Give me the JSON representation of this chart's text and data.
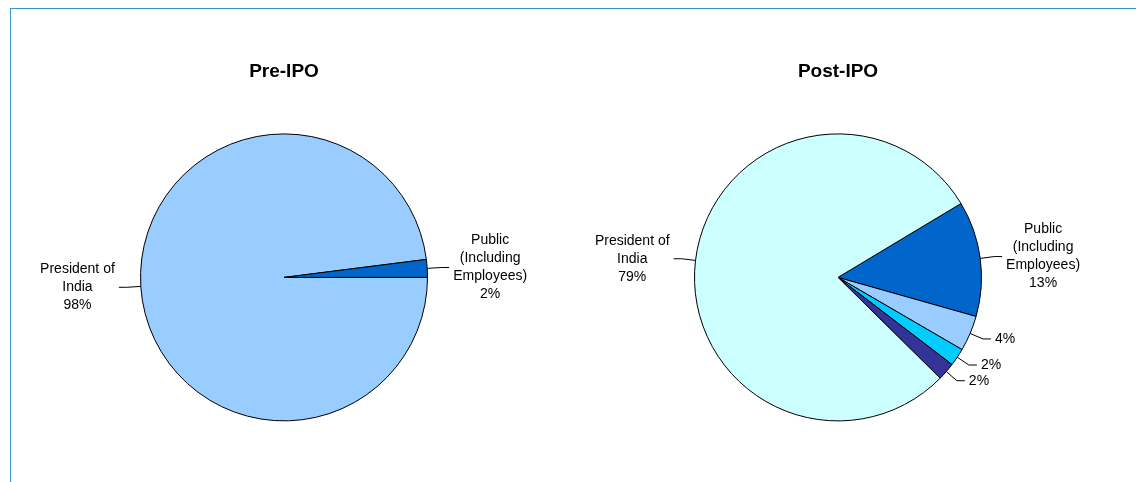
{
  "chart_data": [
    {
      "type": "pie",
      "title": "Pre-IPO",
      "categories": [
        "President of India",
        "Public (Including Employees)"
      ],
      "values": [
        98,
        2
      ],
      "value_labels": [
        "98%",
        "2%"
      ],
      "colors": [
        "#99ccff",
        "#0066cc"
      ],
      "legend": false
    },
    {
      "type": "pie",
      "title": "Post-IPO",
      "categories": [
        "Public (Including Employees)",
        null,
        null,
        null,
        "President of India"
      ],
      "values": [
        13,
        4,
        2,
        2,
        79
      ],
      "value_labels": [
        "13%",
        "4%",
        "2%",
        "2%",
        "79%"
      ],
      "colors": [
        "#0066cc",
        "#99ccff",
        "#00ccff",
        "#333399",
        "#ccffff"
      ],
      "legend": false
    }
  ]
}
